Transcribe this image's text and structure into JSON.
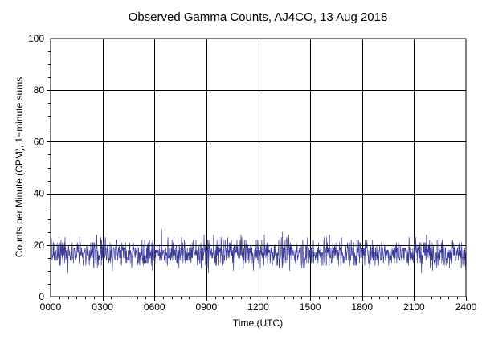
{
  "chart_data": {
    "type": "line",
    "title": "Observed Gamma Counts, AJ4CO, 13 Aug 2018",
    "xlabel": "Time (UTC)",
    "ylabel": "Counts per Minute (CPM), 1−minute sums",
    "xlim": [
      0,
      1440
    ],
    "ylim": [
      0,
      100
    ],
    "x_ticks": [
      {
        "value": 0,
        "label": "0000"
      },
      {
        "value": 180,
        "label": "0300"
      },
      {
        "value": 360,
        "label": "0600"
      },
      {
        "value": 540,
        "label": "0900"
      },
      {
        "value": 720,
        "label": "1200"
      },
      {
        "value": 900,
        "label": "1500"
      },
      {
        "value": 1080,
        "label": "1800"
      },
      {
        "value": 1260,
        "label": "2100"
      },
      {
        "value": 1440,
        "label": "2400"
      }
    ],
    "y_ticks": [
      {
        "value": 0,
        "label": "0"
      },
      {
        "value": 20,
        "label": "20"
      },
      {
        "value": 40,
        "label": "40"
      },
      {
        "value": 60,
        "label": "60"
      },
      {
        "value": 80,
        "label": "80"
      },
      {
        "value": 100,
        "label": "100"
      }
    ],
    "grid": true,
    "reference_line": {
      "y": 20,
      "color": "#000000"
    },
    "series": [
      {
        "color": "#3a3a9a",
        "mean": 17,
        "min": 6,
        "max": 30,
        "sample_interval_minutes": 1
      }
    ]
  }
}
